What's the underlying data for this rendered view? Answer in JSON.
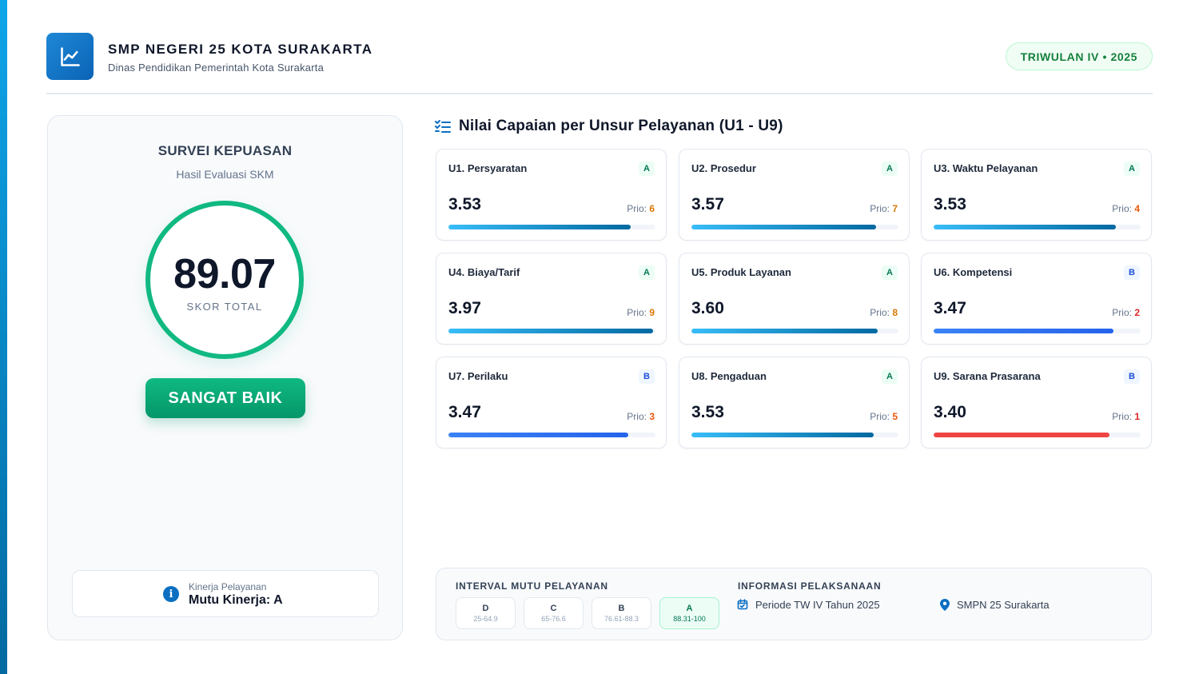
{
  "header": {
    "school_name": "SMP NEGERI 25 KOTA SURAKARTA",
    "school_subtitle": "Dinas Pendidikan Pemerintah Kota Surakarta",
    "period_badge": "TRIWULAN IV • 2025",
    "logo_icon": "line-chart-icon"
  },
  "survey": {
    "title": "SURVEI KEPUASAN",
    "subtitle": "Hasil Evaluasi SKM",
    "score": "89.07",
    "score_label": "SKOR TOTAL",
    "grade_label": "SANGAT BAIK",
    "performance_caption": "Kinerja Pelayanan",
    "performance_value": "Mutu Kinerja: A",
    "accent_color": "#10b981"
  },
  "section": {
    "title": "Nilai Capaian per Unsur Pelayanan (U1 - U9)",
    "icon": "checklist-icon"
  },
  "units": [
    {
      "name": "U1. Persyaratan",
      "grade": "A",
      "value": "3.53",
      "prio_label": "Prio:",
      "prio": "6",
      "progress": 0.88
    },
    {
      "name": "U2. Prosedur",
      "grade": "A",
      "value": "3.57",
      "prio_label": "Prio:",
      "prio": "7",
      "progress": 0.89
    },
    {
      "name": "U3. Waktu Pelayanan",
      "grade": "A",
      "value": "3.53",
      "prio_label": "Prio:",
      "prio": "4",
      "progress": 0.88
    },
    {
      "name": "U4. Biaya/Tarif",
      "grade": "A",
      "value": "3.97",
      "prio_label": "Prio:",
      "prio": "9",
      "progress": 0.99
    },
    {
      "name": "U5. Produk Layanan",
      "grade": "A",
      "value": "3.60",
      "prio_label": "Prio:",
      "prio": "8",
      "progress": 0.9
    },
    {
      "name": "U6. Kompetensi",
      "grade": "B",
      "value": "3.47",
      "prio_label": "Prio:",
      "prio": "2",
      "progress": 0.87
    },
    {
      "name": "U7. Perilaku",
      "grade": "B",
      "value": "3.47",
      "prio_label": "Prio:",
      "prio": "3",
      "progress": 0.87
    },
    {
      "name": "U8. Pengaduan",
      "grade": "A",
      "value": "3.53",
      "prio_label": "Prio:",
      "prio": "5",
      "progress": 0.88
    },
    {
      "name": "U9. Sarana Prasarana",
      "grade": "B",
      "value": "3.40",
      "prio_label": "Prio:",
      "prio": "1",
      "progress": 0.85
    }
  ],
  "colors": {
    "grade_a_bar": "#0ea5e9",
    "grade_b_bar": "#3b82f6",
    "lowest_bar": "#ef4444",
    "prio_high": "#dc2626",
    "prio_mid": "#ea580c",
    "prio_low": "#d97706"
  },
  "interval": {
    "heading": "INTERVAL MUTU PELAYANAN",
    "items": [
      {
        "grade": "D",
        "range": "25-64.9"
      },
      {
        "grade": "C",
        "range": "65-76.6"
      },
      {
        "grade": "B",
        "range": "76.61-88.3"
      },
      {
        "grade": "A",
        "range": "88.31-100"
      }
    ],
    "active_index": 3
  },
  "execution": {
    "heading": "INFORMASI PELAKSANAAN",
    "period": "Periode TW IV Tahun 2025",
    "period_icon": "calendar-icon",
    "location": "SMPN 25 Surakarta",
    "location_icon": "map-pin-icon"
  }
}
